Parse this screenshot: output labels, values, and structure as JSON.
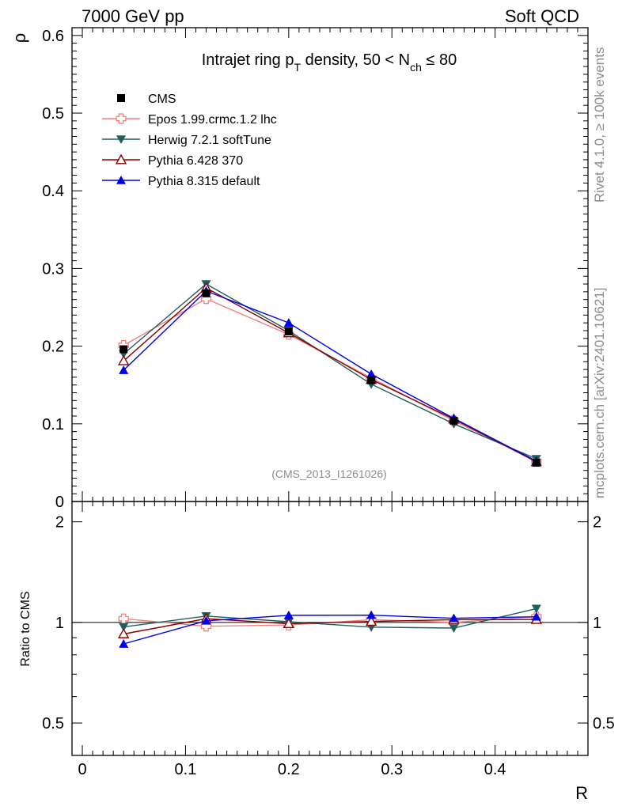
{
  "header": {
    "left": "7000 GeV pp",
    "right": "Soft QCD"
  },
  "side_labels": {
    "rivet": "Rivet 4.1.0, ≥ 100k events",
    "mcplots": "mcplots.cern.ch [arXiv:2401.10621]"
  },
  "chart_data": {
    "type": "line",
    "title": {
      "prefix": "Intrajet ring p",
      "sub1": "T",
      "middle": " density, 50 < N",
      "sub2": "ch",
      "suffix": " ≤ 80"
    },
    "analysis_id": "(CMS_2013_I1261026)",
    "xlabel": "R",
    "ylabel": "ρ",
    "ratio_ylabel": "Ratio to CMS",
    "xlim": [
      -0.01,
      0.49
    ],
    "ylim": [
      0,
      0.61
    ],
    "ratio_ylim": [
      0.4,
      2.3
    ],
    "x_ticks": [
      "0",
      "0.1",
      "0.2",
      "0.3",
      "0.4"
    ],
    "y_ticks": [
      "0",
      "0.1",
      "0.2",
      "0.3",
      "0.4",
      "0.5",
      "0.6"
    ],
    "ratio_ticks": [
      "0.5",
      "1",
      "2"
    ],
    "x": [
      0.04,
      0.12,
      0.2,
      0.28,
      0.36,
      0.44
    ],
    "data": {
      "name": "CMS",
      "color": "#000000",
      "values": [
        0.196,
        0.268,
        0.219,
        0.156,
        0.104,
        0.05
      ]
    },
    "series": [
      {
        "name": "Epos 1.99.crmc.1.2 lhc",
        "color": "#f08080",
        "marker": "cross-open",
        "values": [
          0.201,
          0.261,
          0.215,
          0.159,
          0.104,
          0.052
        ]
      },
      {
        "name": "Herwig 7.2.1 softTune",
        "color": "#215e5e",
        "marker": "tri-down",
        "values": [
          0.19,
          0.28,
          0.22,
          0.151,
          0.1,
          0.055
        ]
      },
      {
        "name": "Pythia 6.428 370",
        "color": "#8b0000",
        "marker": "tri-up-open",
        "values": [
          0.181,
          0.275,
          0.217,
          0.157,
          0.106,
          0.051
        ]
      },
      {
        "name": "Pythia 8.315 default",
        "color": "#0000e6",
        "marker": "tri-up",
        "values": [
          0.169,
          0.271,
          0.23,
          0.164,
          0.107,
          0.052
        ]
      }
    ]
  }
}
